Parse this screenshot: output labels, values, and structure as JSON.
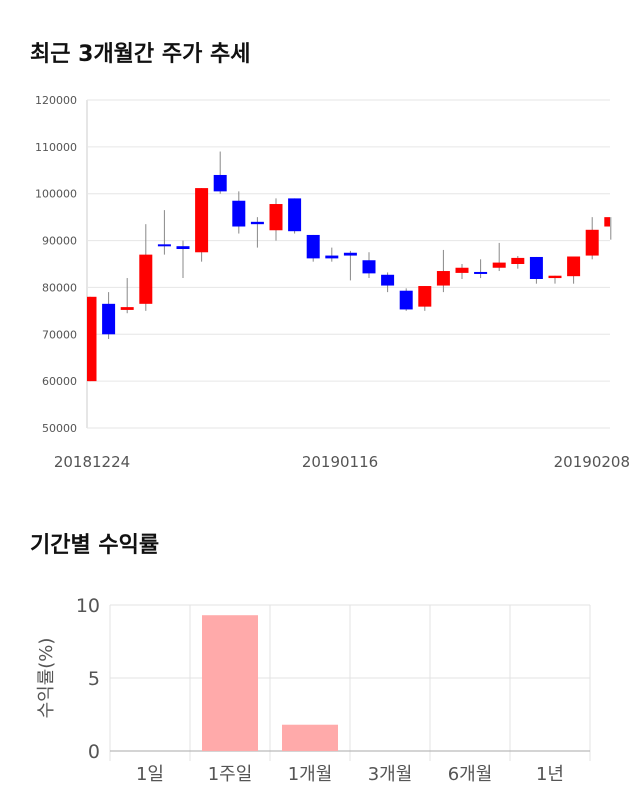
{
  "titles": {
    "price_chart": "최근 3개월간 주가 추세",
    "return_chart": "기간별 수익률"
  },
  "chart_data": [
    {
      "type": "candlestick",
      "title": "최근 3개월간 주가 추세",
      "ylim": [
        50000,
        120000
      ],
      "yticks": [
        "120000",
        "110000",
        "100000",
        "90000",
        "80000",
        "70000",
        "60000",
        "50000"
      ],
      "xtick_labels": [
        "20181224",
        "20190116",
        "20190208"
      ],
      "grid": true,
      "colors": {
        "up": "#ff0000",
        "down": "#0000ff",
        "wick": "#888888"
      },
      "candles": [
        {
          "open": 60000,
          "close": 78000,
          "high": 78000,
          "low": 60000
        },
        {
          "open": 76500,
          "close": 70000,
          "high": 79000,
          "low": 69000
        },
        {
          "open": 75200,
          "close": 75800,
          "high": 82000,
          "low": 74500
        },
        {
          "open": 76500,
          "close": 87000,
          "high": 93500,
          "low": 75000
        },
        {
          "open": 89200,
          "close": 88800,
          "high": 96500,
          "low": 87000
        },
        {
          "open": 88800,
          "close": 88200,
          "high": 90000,
          "low": 82000
        },
        {
          "open": 87500,
          "close": 101200,
          "high": 101200,
          "low": 85500
        },
        {
          "open": 104000,
          "close": 100500,
          "high": 109000,
          "low": 100000
        },
        {
          "open": 98500,
          "close": 93000,
          "high": 100500,
          "low": 91500
        },
        {
          "open": 94000,
          "close": 93500,
          "high": 95000,
          "low": 88500
        },
        {
          "open": 92200,
          "close": 97800,
          "high": 99000,
          "low": 90000
        },
        {
          "open": 99000,
          "close": 92000,
          "high": 99000,
          "low": 91500
        },
        {
          "open": 91200,
          "close": 86200,
          "high": 91200,
          "low": 85500
        },
        {
          "open": 86800,
          "close": 86200,
          "high": 88500,
          "low": 85500
        },
        {
          "open": 87400,
          "close": 86800,
          "high": 87800,
          "low": 81500
        },
        {
          "open": 85800,
          "close": 83000,
          "high": 87500,
          "low": 82000
        },
        {
          "open": 82700,
          "close": 80400,
          "high": 83200,
          "low": 79000
        },
        {
          "open": 79300,
          "close": 75300,
          "high": 79800,
          "low": 75000
        },
        {
          "open": 75900,
          "close": 80300,
          "high": 80300,
          "low": 75000
        },
        {
          "open": 80400,
          "close": 83500,
          "high": 88000,
          "low": 79000
        },
        {
          "open": 83100,
          "close": 84200,
          "high": 85000,
          "low": 81800
        },
        {
          "open": 83300,
          "close": 83000,
          "high": 86000,
          "low": 82000
        },
        {
          "open": 84200,
          "close": 85300,
          "high": 89500,
          "low": 83500
        },
        {
          "open": 85000,
          "close": 86300,
          "high": 86700,
          "low": 84000
        },
        {
          "open": 86500,
          "close": 81800,
          "high": 86500,
          "low": 80800
        },
        {
          "open": 82000,
          "close": 82500,
          "high": 82500,
          "low": 80800
        },
        {
          "open": 82400,
          "close": 86600,
          "high": 86600,
          "low": 80800
        },
        {
          "open": 86800,
          "close": 92300,
          "high": 95000,
          "low": 86000
        },
        {
          "open": 93000,
          "close": 95000,
          "high": 95000,
          "low": 90200
        }
      ]
    },
    {
      "type": "bar",
      "title": "기간별 수익률",
      "ylabel": "수익률(%)",
      "ylim": [
        0,
        10
      ],
      "yticks": [
        "10",
        "5",
        "0"
      ],
      "categories": [
        "1일",
        "1주일",
        "1개월",
        "3개월",
        "6개월",
        "1년"
      ],
      "values": [
        0,
        9.3,
        1.8,
        0,
        0,
        0
      ],
      "color": "#ffaaaa"
    }
  ]
}
